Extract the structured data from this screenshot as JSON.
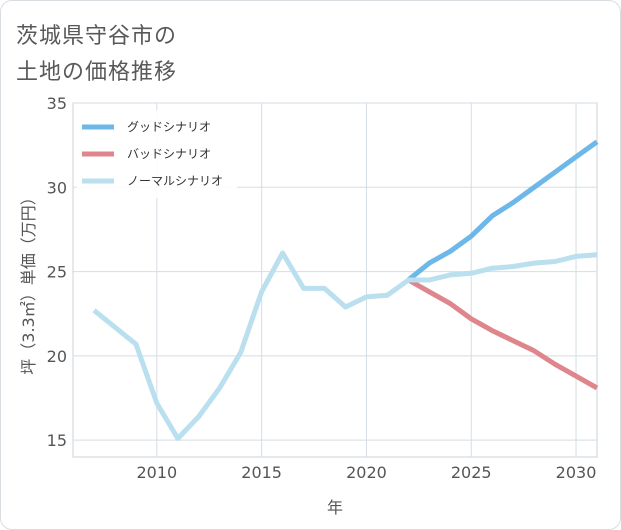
{
  "title_lines": [
    "茨城県守谷市の",
    "土地の価格推移"
  ],
  "chart_data": {
    "type": "line",
    "xlabel": "年",
    "ylabel": "坪（3.3㎡）単価（万円）",
    "xlim": [
      2006,
      2031
    ],
    "ylim": [
      14,
      35
    ],
    "x_ticks": [
      2010,
      2015,
      2020,
      2025,
      2030
    ],
    "y_ticks": [
      15,
      20,
      25,
      30,
      35
    ],
    "grid": true,
    "legend_position": "top-left",
    "series": [
      {
        "name": "グッドシナリオ",
        "color": "#6db8e8",
        "x": [
          2022,
          2023,
          2024,
          2025,
          2026,
          2027,
          2028,
          2029,
          2030,
          2031
        ],
        "y": [
          24.5,
          25.5,
          26.2,
          27.1,
          28.3,
          29.1,
          30.0,
          30.9,
          31.8,
          32.7
        ]
      },
      {
        "name": "バッドシナリオ",
        "color": "#df868c",
        "x": [
          2022,
          2023,
          2024,
          2025,
          2026,
          2027,
          2028,
          2029,
          2030,
          2031
        ],
        "y": [
          24.5,
          23.8,
          23.1,
          22.2,
          21.5,
          20.9,
          20.3,
          19.5,
          18.8,
          18.1
        ]
      },
      {
        "name": "ノーマルシナリオ",
        "color": "#badfef",
        "x": [
          2007,
          2008,
          2009,
          2010,
          2011,
          2012,
          2013,
          2014,
          2015,
          2016,
          2017,
          2018,
          2019,
          2020,
          2021,
          2022,
          2023,
          2024,
          2025,
          2026,
          2027,
          2028,
          2029,
          2030,
          2031
        ],
        "y": [
          22.7,
          21.7,
          20.7,
          17.2,
          15.1,
          16.4,
          18.1,
          20.2,
          23.8,
          26.1,
          24.0,
          24.0,
          22.9,
          23.5,
          23.6,
          24.5,
          24.5,
          24.8,
          24.9,
          25.2,
          25.3,
          25.5,
          25.6,
          25.9,
          26.0
        ]
      }
    ]
  }
}
